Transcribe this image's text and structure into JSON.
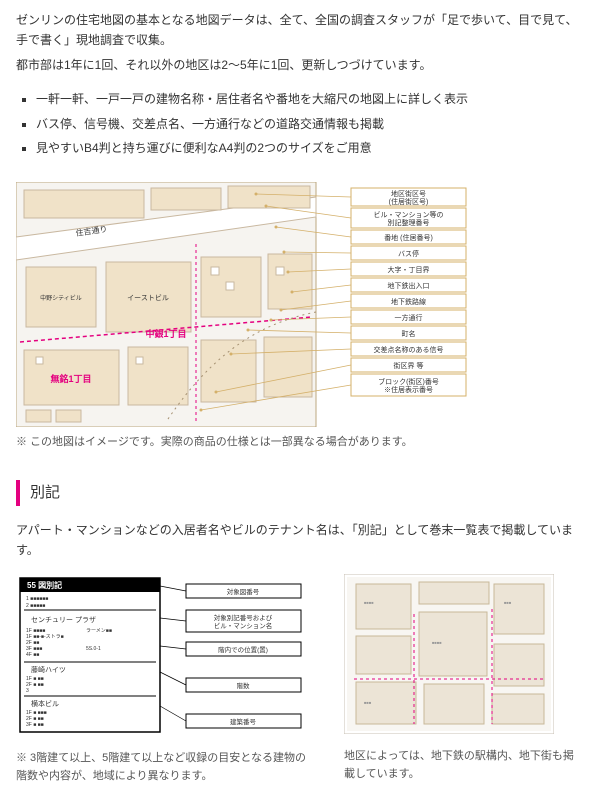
{
  "intro": {
    "p1": "ゼンリンの住宅地図の基本となる地図データは、全て、全国の調査スタッフが「足で歩いて、目で見て、手で書く」現地調査で収集。",
    "p2": "都市部は1年に1回、それ以外の地区は2～5年に1回、更新しつづけています。"
  },
  "features": [
    "一軒一軒、一戸一戸の建物名称・居住者名や番地を大縮尺の地図上に詳しく表示",
    "バス停、信号機、交差点名、一方通行などの道路交通情報も掲載",
    "見やすいB4判と持ち運びに便利なA4判の2つのサイズをご用意"
  ],
  "map": {
    "caption": "※ この地図はイメージです。実際の商品の仕様とは一部異なる場合があります。",
    "streetLabel": "住吉通り",
    "districtCenter": "中銀1丁目",
    "districtBottom": "無銘1丁目",
    "building1": "イーストビル",
    "building2": "中野シティビル",
    "legend": [
      "地区街区号\n(住居街区号)",
      "ビル・マンション等の\n別記整理番号",
      "番地 (住居番号)",
      "バス停",
      "大字・丁目界",
      "地下鉄出入口",
      "地下鉄路線",
      "一方通行",
      "町名",
      "交差点名称のある信号",
      "街区界 等",
      "ブロック(街区)番号\n※住居表示番号"
    ],
    "colors": {
      "mapBg": "#f6f4f0",
      "road": "#ffffff",
      "roadEdge": "#c9b8a0",
      "block": "#f0e2c8",
      "magenta": "#e4007f",
      "labelBox": "#ffffff",
      "labelBorder": "#d4b06a",
      "text": "#333333",
      "leader": "#d4b06a"
    }
  },
  "section2": {
    "title": "別記",
    "lead": "アパート・マンションなどの入居者名やビルのテナント名は、「別記」として巻末一覧表で掲載しています。",
    "left": {
      "caption": "※ 3階建て以上、5階建て以上など収録の目安となる建物の階数や内容が、地域により異なります。",
      "header": "55  図別記",
      "bldg1": "センチュリー\nプラザ",
      "bldg2": "藤崎ハイツ",
      "bldg3": "横本ビル",
      "labels": [
        "対象図番号",
        "対象別記番号および\nビル・マンション名",
        "階内での位置(置)",
        "階数",
        "建築番号"
      ]
    },
    "right": {
      "caption": "地区によっては、地下鉄の駅構内、地下街も掲載しています。"
    }
  }
}
